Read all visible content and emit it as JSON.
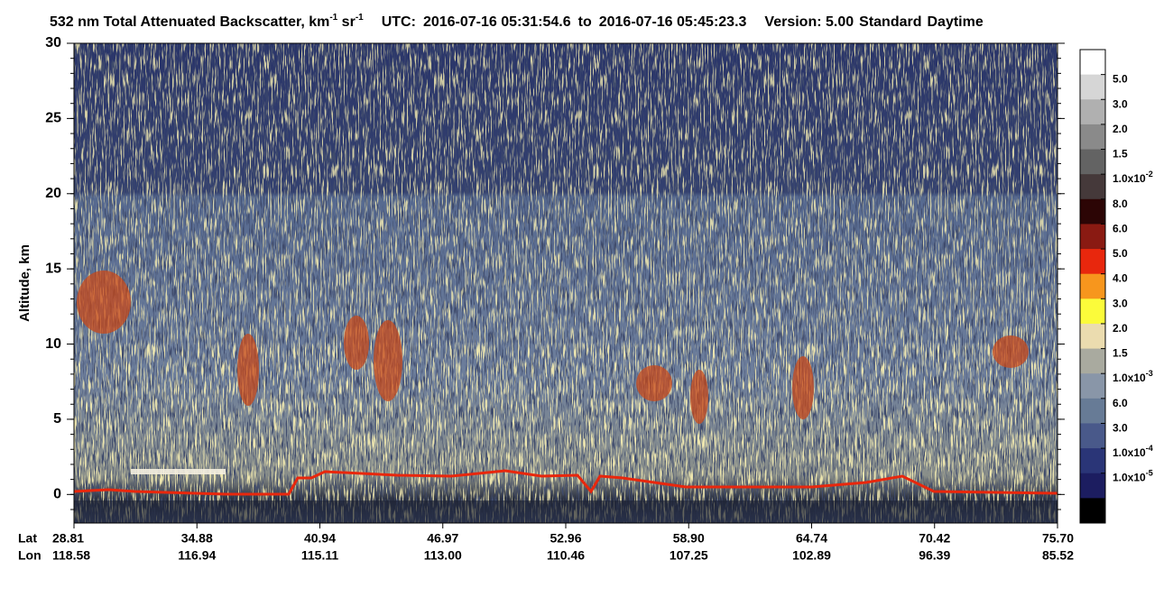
{
  "chart_data": {
    "type": "heatmap",
    "title": [
      {
        "text": "532 nm Total Attenuated Backscatter, km",
        "sup": false
      },
      {
        "text": "-1",
        "sup": true
      },
      {
        "text": " sr",
        "sup": false
      },
      {
        "text": "-1",
        "sup": true
      }
    ],
    "time_label": "UTC:",
    "start_time": "2016-07-16 05:31:54.6",
    "time_to": "to",
    "end_time": "2016-07-16 05:45:23.3",
    "version": "Version: 5.00",
    "product": "Standard",
    "mode": "Daytime",
    "y_label": "Altitude, km",
    "ylim": [
      -1.9,
      30
    ],
    "yticks": [
      0,
      5,
      10,
      15,
      20,
      25,
      30
    ],
    "x_row_labels": [
      "Lat",
      "Lon"
    ],
    "lat": [
      "28.81",
      "34.88",
      "40.94",
      "46.97",
      "52.96",
      "58.90",
      "64.74",
      "70.42",
      "75.70"
    ],
    "lon": [
      "118.58",
      "116.94",
      "115.11",
      "113.00",
      "110.46",
      "107.25",
      "102.89",
      "96.39",
      "85.52"
    ],
    "colorbar": {
      "colors": [
        "#ffffff",
        "#d6d6d6",
        "#b0b0b0",
        "#8a8a8a",
        "#636363",
        "#45393a",
        "#2c0505",
        "#8a1a12",
        "#e8270d",
        "#f7961d",
        "#fbfb3a",
        "#ebdcaf",
        "#a9aa9f",
        "#8996a8",
        "#677b96",
        "#49598a",
        "#2a3577",
        "#1c1d60"
      ],
      "labels": [
        "5.0",
        "3.0",
        "2.0",
        "1.5",
        "1.0x10",
        "8.0",
        "6.0",
        "5.0",
        "4.0",
        "3.0",
        "2.0",
        "1.5",
        "1.0x10",
        "6.0",
        "3.0",
        "1.0x10",
        "1.0x10"
      ],
      "exponents": [
        null,
        null,
        null,
        null,
        "-2",
        null,
        null,
        null,
        null,
        null,
        null,
        null,
        "-3",
        null,
        null,
        "-4",
        "-5"
      ]
    }
  }
}
